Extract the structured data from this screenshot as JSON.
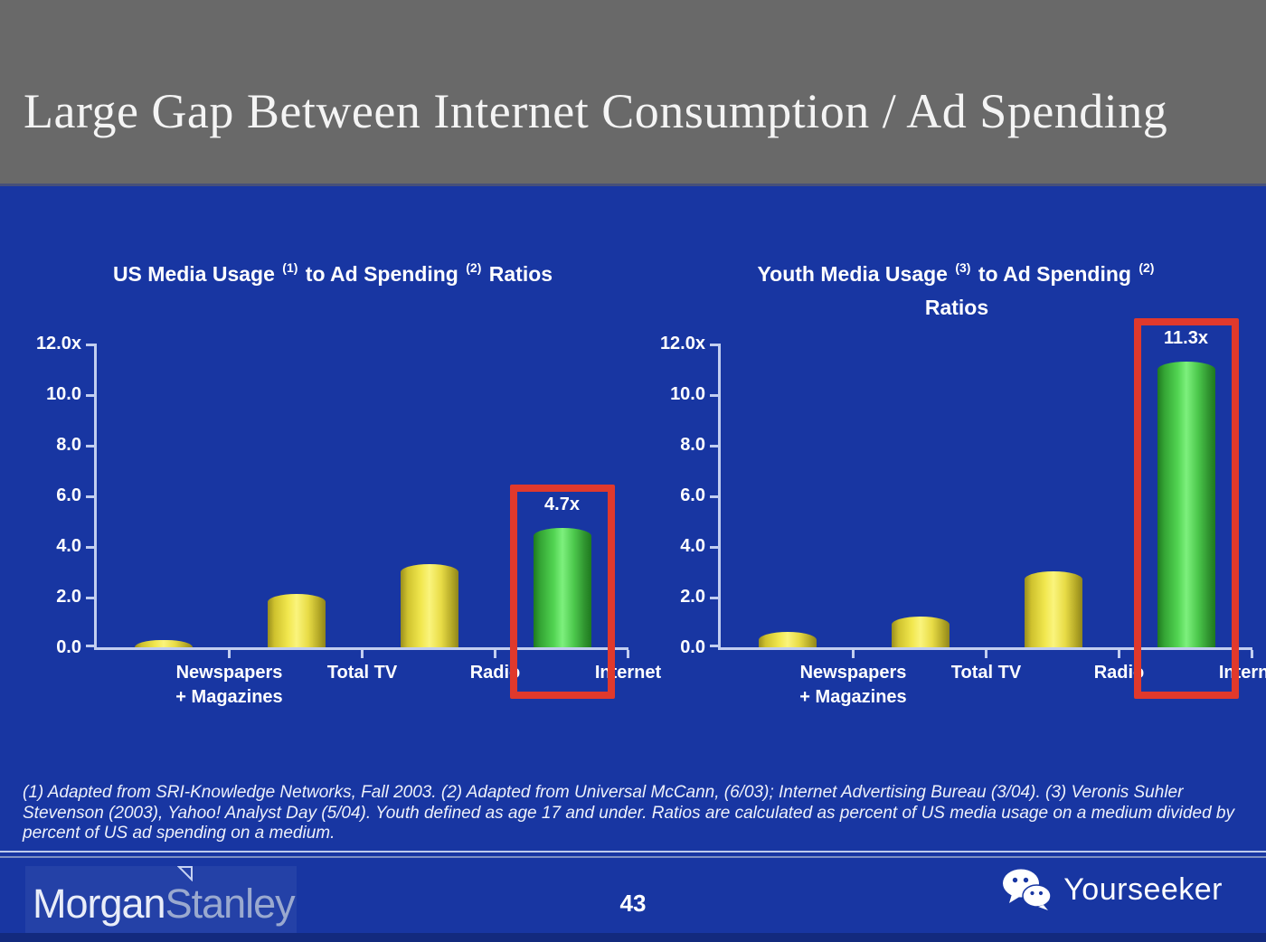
{
  "slide": {
    "title": "Large Gap Between Internet Consumption / Ad Spending",
    "page_number": "43"
  },
  "chart_data": [
    {
      "type": "bar",
      "title": "US Media Usage (1) to Ad Spending (2) Ratios",
      "title_lines": [
        [
          {
            "text": "US Media Usage "
          },
          {
            "sup": "(1)"
          },
          {
            "text": " to Ad Spending "
          },
          {
            "sup": "(2)"
          },
          {
            "text": " Ratios"
          }
        ]
      ],
      "categories": [
        "Newspapers + Magazines",
        "Total TV",
        "Radio",
        "Internet"
      ],
      "values": [
        0.3,
        2.1,
        3.3,
        4.7
      ],
      "bar_value_labels": [
        null,
        null,
        null,
        "4.7x"
      ],
      "bar_color_roles": [
        "media",
        "media",
        "media",
        "internet"
      ],
      "highlight_index": 3,
      "ylim": [
        0,
        12
      ],
      "ytick_labels": [
        "12.0x",
        "10.0",
        "8.0",
        "6.0",
        "4.0",
        "2.0",
        "0.0"
      ],
      "xlabel": "",
      "ylabel": "",
      "grid": false,
      "legend": null
    },
    {
      "type": "bar",
      "title": "Youth Media Usage (3) to Ad Spending (2) Ratios",
      "title_lines": [
        [
          {
            "text": "Youth Media Usage "
          },
          {
            "sup": "(3)"
          },
          {
            "text": " to Ad Spending "
          },
          {
            "sup": "(2)"
          }
        ],
        [
          {
            "text": "Ratios"
          }
        ]
      ],
      "categories": [
        "Newspapers + Magazines",
        "Total TV",
        "Radio",
        "Internet"
      ],
      "values": [
        0.6,
        1.2,
        3.0,
        11.3
      ],
      "bar_value_labels": [
        null,
        null,
        null,
        "11.3x"
      ],
      "bar_color_roles": [
        "media",
        "media",
        "media",
        "internet"
      ],
      "highlight_index": 3,
      "ylim": [
        0,
        12
      ],
      "ytick_labels": [
        "12.0x",
        "10.0",
        "8.0",
        "6.0",
        "4.0",
        "2.0",
        "0.0"
      ],
      "xlabel": "",
      "ylabel": "",
      "grid": false,
      "legend": null
    }
  ],
  "footnote": "(1) Adapted from SRI-Knowledge Networks, Fall 2003.  (2) Adapted from Universal McCann, (6/03); Internet Advertising Bureau (3/04). (3) Veronis Suhler Stevenson (2003), Yahoo! Analyst Day (5/04).  Youth defined as age 17 and under.  Ratios are calculated as percent of US media usage on a medium divided by percent of US ad spending on a medium.",
  "footer": {
    "brand_part1": "Morgan",
    "brand_part2": "Stanley",
    "watermark_label": "Yourseeker"
  },
  "colors": {
    "header_bg": "#696969",
    "body_bg": "#1836a2",
    "axis": "#c2cef0",
    "highlight_box": "#e0392c",
    "bar_media": "#f2e858",
    "bar_internet": "#55d855",
    "text": "#ffffff"
  }
}
